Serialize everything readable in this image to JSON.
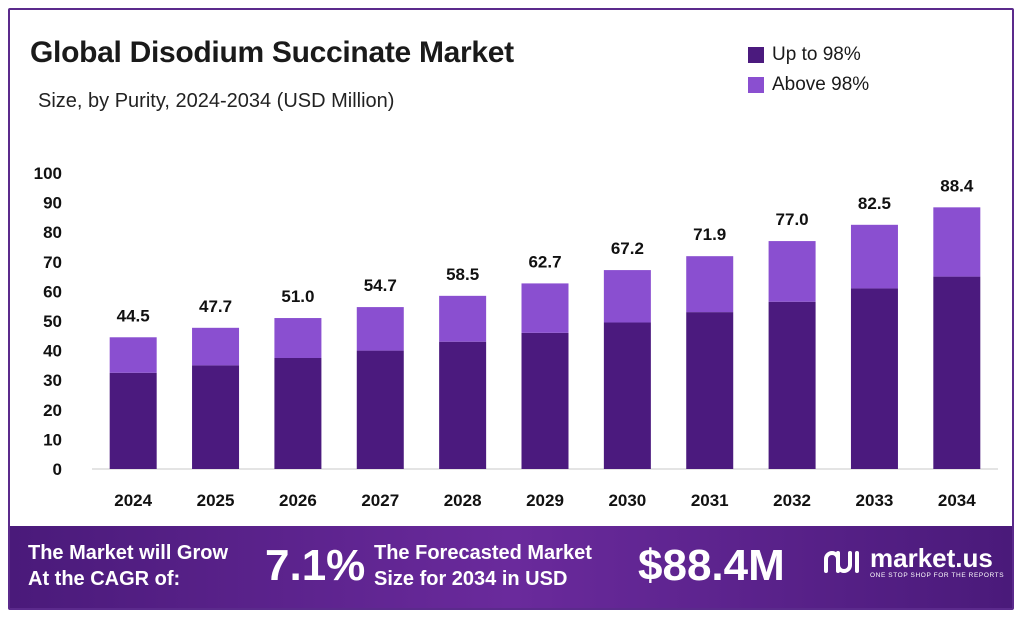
{
  "colors": {
    "up_to_98": "#4b1a7e",
    "above_98": "#8a4fd0",
    "banner": "#5a2290",
    "border": "#5b2a8c"
  },
  "legend": [
    {
      "label": "Up to 98%",
      "color": "#4b1a7e"
    },
    {
      "label": "Above 98%",
      "color": "#8a4fd0"
    }
  ],
  "chart_data": {
    "type": "bar",
    "stacked": true,
    "title": "Global Disodium Succinate Market",
    "subtitle": "Size, by Purity, 2024-2034 (USD Million)",
    "categories": [
      "2024",
      "2025",
      "2026",
      "2027",
      "2028",
      "2029",
      "2030",
      "2031",
      "2032",
      "2033",
      "2034"
    ],
    "series": [
      {
        "name": "Up to 98%",
        "values": [
          32.5,
          35.0,
          37.5,
          40.0,
          43.0,
          46.0,
          49.5,
          53.0,
          56.5,
          61.0,
          65.0
        ]
      },
      {
        "name": "Above 98%",
        "values": [
          12.0,
          12.7,
          13.5,
          14.7,
          15.5,
          16.7,
          17.7,
          18.9,
          20.5,
          21.5,
          23.4
        ]
      }
    ],
    "totals": [
      "44.5",
      "47.7",
      "51.0",
      "54.7",
      "58.5",
      "62.7",
      "67.2",
      "71.9",
      "77.0",
      "82.5",
      "88.4"
    ],
    "ylim": [
      0,
      100
    ],
    "yticks": [
      "0",
      "10",
      "20",
      "30",
      "40",
      "50",
      "60",
      "70",
      "80",
      "90",
      "100"
    ],
    "grid": false,
    "legend_position": "top-right"
  },
  "banner": {
    "cagr_text_line1": "The Market will Grow",
    "cagr_text_line2": "At the CAGR of:",
    "cagr_value": "7.1%",
    "forecast_text_line1": "The Forecasted Market",
    "forecast_text_line2": "Size for 2034 in USD",
    "forecast_value": "$88.4M",
    "brand": "market.us",
    "tagline": "ONE STOP SHOP FOR THE REPORTS"
  }
}
